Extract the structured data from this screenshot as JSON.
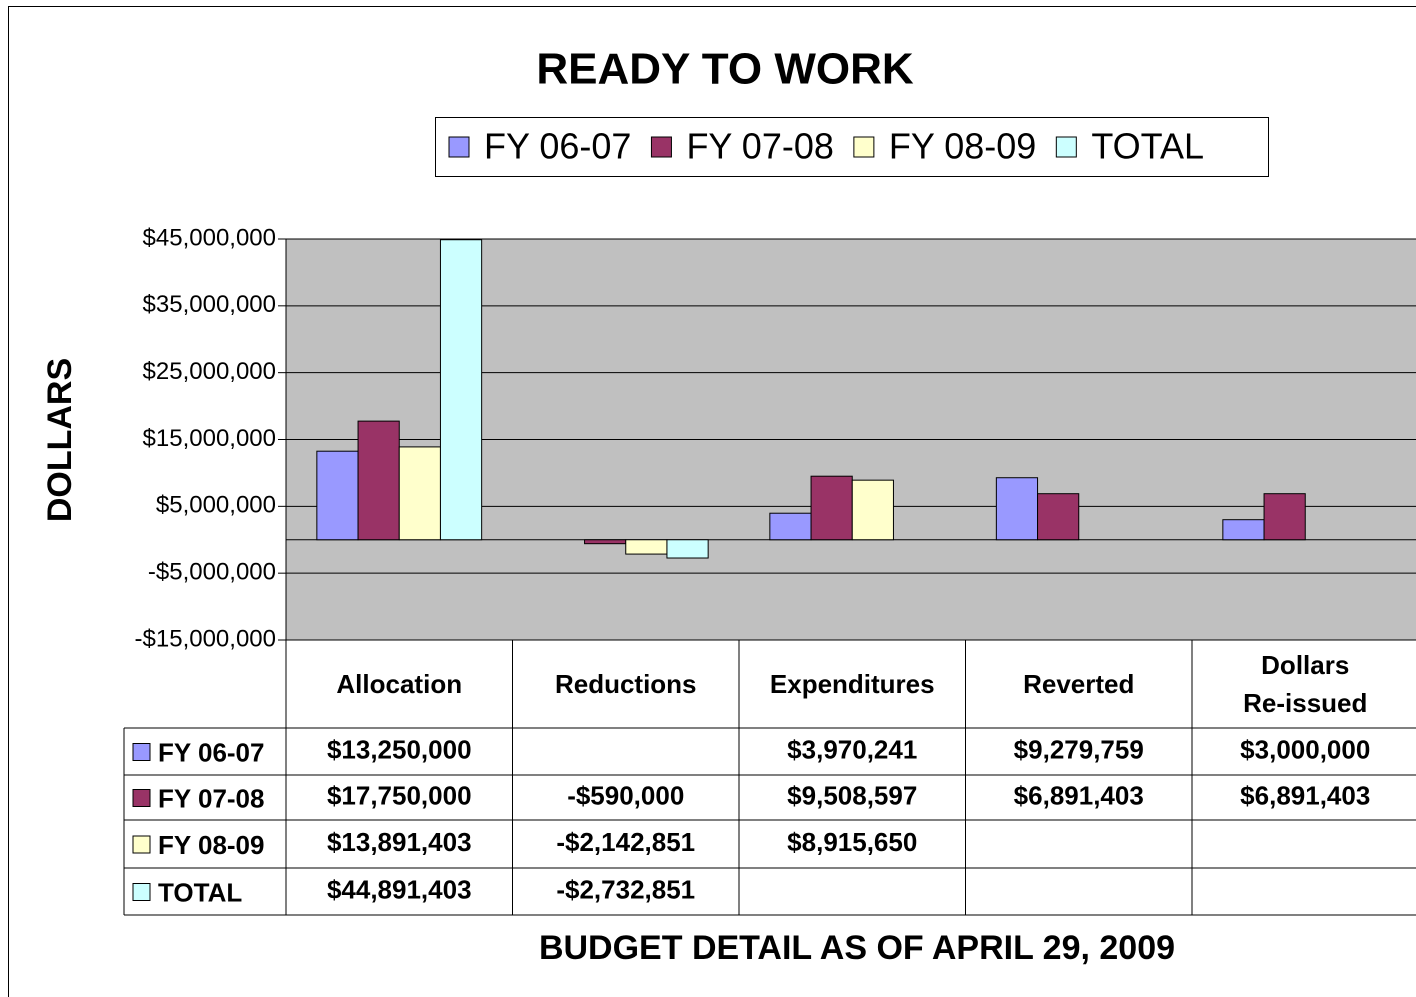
{
  "chart_data": {
    "type": "bar",
    "title": "READY TO WORK",
    "x_label": "BUDGET DETAIL AS OF APRIL 29, 2009",
    "y_label": "DOLLARS",
    "categories": [
      "Allocation",
      "Reductions",
      "Expenditures",
      "Reverted",
      "Dollars\nRe-issued"
    ],
    "series": [
      {
        "name": "FY 06-07",
        "color": "#9999ff",
        "values": [
          13250000,
          null,
          3970241,
          9279759,
          3000000
        ],
        "value_labels": [
          "$13,250,000",
          null,
          "$3,970,241",
          "$9,279,759",
          "$3,000,000"
        ]
      },
      {
        "name": "FY 07-08",
        "color": "#993366",
        "values": [
          17750000,
          -590000,
          9508597,
          6891403,
          6891403
        ],
        "value_labels": [
          "$17,750,000",
          "-$590,000",
          "$9,508,597",
          "$6,891,403",
          "$6,891,403"
        ]
      },
      {
        "name": "FY 08-09",
        "color": "#ffffcc",
        "values": [
          13891403,
          -2142851,
          8915650,
          null,
          null
        ],
        "value_labels": [
          "$13,891,403",
          "-$2,142,851",
          "$8,915,650",
          null,
          null
        ]
      },
      {
        "name": "TOTAL",
        "color": "#ccffff",
        "values": [
          44891403,
          -2732851,
          null,
          null,
          null
        ],
        "value_labels": [
          "$44,891,403",
          "-$2,732,851",
          null,
          null,
          null
        ]
      }
    ],
    "ylim": [
      -15000000,
      45000000
    ],
    "yticks": [
      {
        "value": 45000000,
        "label": "$45,000,000"
      },
      {
        "value": 35000000,
        "label": "$35,000,000"
      },
      {
        "value": 25000000,
        "label": "$25,000,000"
      },
      {
        "value": 15000000,
        "label": "$15,000,000"
      },
      {
        "value": 5000000,
        "label": "$5,000,000"
      },
      {
        "value": -5000000,
        "label": "-$5,000,000"
      },
      {
        "value": -15000000,
        "label": "-$15,000,000"
      }
    ],
    "grid": true,
    "legend": "top",
    "data_table": true,
    "plot_background": "#c0c0c0"
  }
}
